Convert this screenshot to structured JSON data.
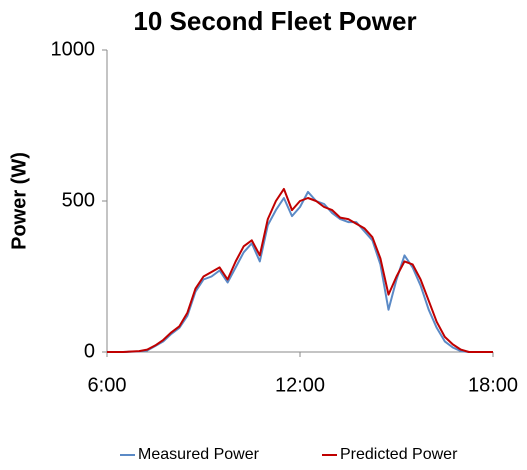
{
  "chart_data": {
    "type": "line",
    "title": "10 Second Fleet Power",
    "y_label": "Power (W)",
    "x": [
      6,
      6.5,
      7,
      7.25,
      7.5,
      7.75,
      8,
      8.25,
      8.5,
      8.75,
      9,
      9.25,
      9.5,
      9.75,
      10,
      10.25,
      10.5,
      10.75,
      11,
      11.25,
      11.5,
      11.75,
      12,
      12.25,
      12.5,
      12.75,
      13,
      13.25,
      13.5,
      13.75,
      14,
      14.25,
      14.5,
      14.75,
      15,
      15.25,
      15.5,
      15.75,
      16,
      16.25,
      16.5,
      16.75,
      17,
      17.25,
      17.5,
      18
    ],
    "series": [
      {
        "name": "Measured Power",
        "color": "#5b8ac6",
        "values": [
          0,
          0,
          2,
          5,
          20,
          35,
          60,
          80,
          120,
          200,
          240,
          250,
          270,
          230,
          280,
          330,
          360,
          300,
          420,
          470,
          510,
          450,
          480,
          530,
          500,
          490,
          460,
          440,
          430,
          430,
          400,
          370,
          290,
          140,
          240,
          320,
          280,
          220,
          140,
          80,
          35,
          15,
          3,
          0,
          0,
          0
        ]
      },
      {
        "name": "Predicted Power",
        "color": "#c00000",
        "values": [
          0,
          0,
          3,
          8,
          22,
          40,
          65,
          85,
          130,
          210,
          250,
          265,
          280,
          240,
          300,
          350,
          370,
          320,
          440,
          500,
          540,
          470,
          500,
          510,
          500,
          480,
          470,
          445,
          440,
          425,
          410,
          380,
          310,
          190,
          250,
          300,
          290,
          240,
          170,
          100,
          50,
          25,
          8,
          0,
          0,
          0
        ]
      }
    ],
    "xlim": [
      6,
      18
    ],
    "xticks": [
      {
        "value": 6,
        "label": "6:00"
      },
      {
        "value": 12,
        "label": "12:00"
      },
      {
        "value": 18,
        "label": "18:00"
      }
    ],
    "ylim": [
      0,
      1000
    ],
    "yticks": [
      0,
      500,
      1000
    ],
    "grid": false,
    "legend": "bottom"
  }
}
